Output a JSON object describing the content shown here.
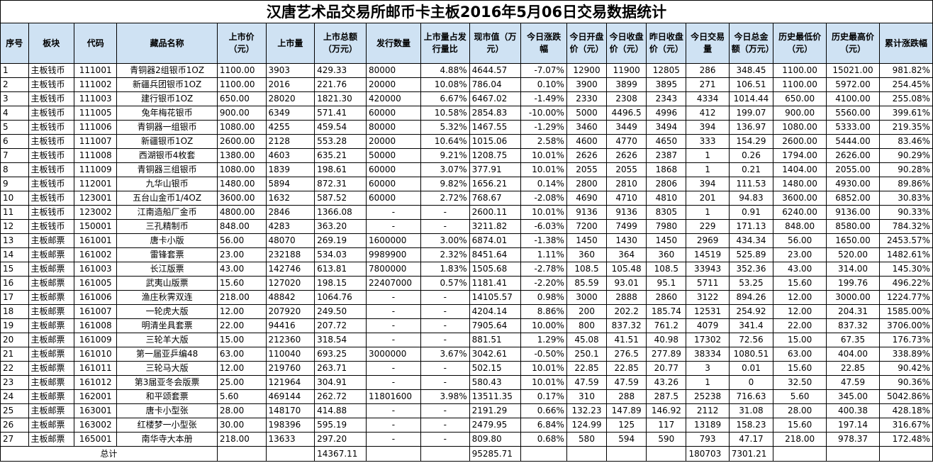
{
  "title": "汉唐艺术品交易所邮币卡主板2016年5月06日交易数据统计",
  "headers": [
    "序号",
    "板块",
    "代码",
    "藏品名称",
    "上市价（元）",
    "上市量",
    "上市总额（万元）",
    "发行数量",
    "上市量占发行量比",
    "现市值（万元）",
    "今日涨跌幅",
    "今日开盘价（元）",
    "今日收盘价（元）",
    "昨日收盘价（元）",
    "今日交易量",
    "今日总金额（万元）",
    "历史最低价（元）",
    "历史最高价（元）",
    "累计涨跌幅"
  ],
  "rows": [
    [
      "1",
      "主板钱币",
      "111001",
      "青铜器2组银币1OZ",
      "1100.00",
      "3903",
      "429.33",
      "80000",
      "4.88%",
      "4644.57",
      "-7.07%",
      "12900",
      "11900",
      "12805",
      "286",
      "348.45",
      "1100.00",
      "15021.00",
      "981.82%"
    ],
    [
      "2",
      "主板钱币",
      "111002",
      "新疆兵团银币1OZ",
      "1100.00",
      "2016",
      "221.76",
      "20000",
      "10.08%",
      "786.04",
      "0.10%",
      "3900",
      "3899",
      "3895",
      "271",
      "106.51",
      "1100.00",
      "5972.00",
      "254.45%"
    ],
    [
      "3",
      "主板钱币",
      "111003",
      "建行银币1OZ",
      "650.00",
      "28020",
      "1821.30",
      "420000",
      "6.67%",
      "6467.02",
      "-1.49%",
      "2330",
      "2308",
      "2343",
      "4334",
      "1014.44",
      "650.00",
      "4100.00",
      "255.08%"
    ],
    [
      "4",
      "主板钱币",
      "111005",
      "兔年梅花银币",
      "900.00",
      "6349",
      "571.41",
      "60000",
      "10.58%",
      "2854.83",
      "-10.00%",
      "5000",
      "4496.5",
      "4996",
      "412",
      "199.07",
      "900.00",
      "5560.00",
      "399.61%"
    ],
    [
      "5",
      "主板钱币",
      "111006",
      "青铜器一组银币",
      "1080.00",
      "4255",
      "459.54",
      "80000",
      "5.32%",
      "1467.55",
      "-1.29%",
      "3460",
      "3449",
      "3494",
      "394",
      "136.97",
      "1080.00",
      "5333.00",
      "219.35%"
    ],
    [
      "6",
      "主板钱币",
      "111007",
      "新疆银币1OZ",
      "2600.00",
      "2128",
      "553.28",
      "20000",
      "10.64%",
      "1015.06",
      "2.58%",
      "4600",
      "4770",
      "4650",
      "333",
      "154.29",
      "2600.00",
      "5444.00",
      "83.46%"
    ],
    [
      "7",
      "主板钱币",
      "111008",
      "西湖银币4枚套",
      "1380.00",
      "4603",
      "635.21",
      "50000",
      "9.21%",
      "1208.75",
      "10.01%",
      "2626",
      "2626",
      "2387",
      "1",
      "0.26",
      "1794.00",
      "2626.00",
      "90.29%"
    ],
    [
      "8",
      "主板钱币",
      "111009",
      "青铜器三组银币",
      "1080.00",
      "1839",
      "198.61",
      "60000",
      "3.07%",
      "377.91",
      "10.01%",
      "2055",
      "2055",
      "1868",
      "1",
      "0.21",
      "1404.00",
      "2055.00",
      "90.28%"
    ],
    [
      "9",
      "主板钱币",
      "112001",
      "九华山银币",
      "1480.00",
      "5894",
      "872.31",
      "60000",
      "9.82%",
      "1656.21",
      "0.14%",
      "2800",
      "2810",
      "2806",
      "394",
      "111.53",
      "1480.00",
      "4930.00",
      "89.86%"
    ],
    [
      "10",
      "主板钱币",
      "123001",
      "五台山金币1/4OZ",
      "3600.00",
      "1632",
      "587.52",
      "60000",
      "2.72%",
      "768.67",
      "-2.08%",
      "4690",
      "4710",
      "4810",
      "201",
      "94.83",
      "3600.00",
      "6852.00",
      "30.83%"
    ],
    [
      "11",
      "主板钱币",
      "123002",
      "江南造船厂金币",
      "4800.00",
      "2846",
      "1366.08",
      "-",
      "-",
      "2600.11",
      "10.01%",
      "9136",
      "9136",
      "8305",
      "1",
      "0.91",
      "6240.00",
      "9136.00",
      "90.33%"
    ],
    [
      "12",
      "主板钱币",
      "150001",
      "三孔精制币",
      "848.00",
      "4283",
      "363.20",
      "-",
      "-",
      "3211.82",
      "-6.03%",
      "7200",
      "7499",
      "7980",
      "229",
      "171.13",
      "848.00",
      "8580.00",
      "784.32%"
    ],
    [
      "13",
      "主板邮票",
      "161001",
      "唐卡小版",
      "56.00",
      "48070",
      "269.19",
      "1600000",
      "3.00%",
      "6874.01",
      "-1.38%",
      "1450",
      "1430",
      "1450",
      "2969",
      "434.34",
      "56.00",
      "1650.00",
      "2453.57%"
    ],
    [
      "14",
      "主板邮票",
      "161002",
      "雷锋套票",
      "23.00",
      "232188",
      "534.03",
      "9989900",
      "2.32%",
      "8451.64",
      "1.11%",
      "360",
      "364",
      "360",
      "14519",
      "525.89",
      "23.00",
      "520.00",
      "1482.61%"
    ],
    [
      "15",
      "主板邮票",
      "161003",
      "长江版票",
      "43.00",
      "142746",
      "613.81",
      "7800000",
      "1.83%",
      "1505.68",
      "-2.78%",
      "108.5",
      "105.48",
      "108.5",
      "33943",
      "352.36",
      "43.00",
      "314.00",
      "145.30%"
    ],
    [
      "16",
      "主板邮票",
      "161005",
      "武夷山版票",
      "15.60",
      "127020",
      "198.15",
      "22407000",
      "0.57%",
      "1181.41",
      "-2.20%",
      "85.59",
      "93.01",
      "95.1",
      "5711",
      "53.25",
      "15.60",
      "199.76",
      "496.22%"
    ],
    [
      "17",
      "主板邮票",
      "161006",
      "渔庄秋霁双连",
      "218.00",
      "48842",
      "1064.76",
      "-",
      "-",
      "14105.57",
      "0.98%",
      "3000",
      "2888",
      "2860",
      "3122",
      "894.26",
      "12.00",
      "3000.00",
      "1224.77%"
    ],
    [
      "18",
      "主板邮票",
      "161007",
      "一轮虎大版",
      "12.00",
      "207920",
      "249.50",
      "-",
      "-",
      "4204.14",
      "8.86%",
      "200",
      "202.2",
      "185.74",
      "12531",
      "254.92",
      "12.00",
      "204.31",
      "1585.00%"
    ],
    [
      "19",
      "主板邮票",
      "161008",
      "明清坐具套票",
      "22.00",
      "94416",
      "207.72",
      "-",
      "-",
      "7905.64",
      "10.00%",
      "800",
      "837.32",
      "761.2",
      "4079",
      "341.4",
      "22.00",
      "837.32",
      "3706.00%"
    ],
    [
      "20",
      "主板邮票",
      "161009",
      "三轮羊大版",
      "15.00",
      "212360",
      "318.54",
      "-",
      "-",
      "881.51",
      "1.29%",
      "45.08",
      "41.51",
      "40.98",
      "17302",
      "72.56",
      "15.00",
      "67.35",
      "176.73%"
    ],
    [
      "21",
      "主板邮票",
      "161010",
      "第一届亚乒编48",
      "63.00",
      "110040",
      "693.25",
      "3000000",
      "3.67%",
      "3042.61",
      "-0.50%",
      "250.1",
      "276.5",
      "277.89",
      "38334",
      "1080.51",
      "63.00",
      "404.00",
      "338.89%"
    ],
    [
      "22",
      "主板邮票",
      "161011",
      "三轮马大版",
      "12.00",
      "219760",
      "263.71",
      "-",
      "-",
      "502.15",
      "10.01%",
      "22.85",
      "22.85",
      "20.77",
      "3",
      "0.01",
      "15.60",
      "22.85",
      "90.42%"
    ],
    [
      "23",
      "主板邮票",
      "161012",
      "第3届亚冬会版票",
      "25.00",
      "121964",
      "304.91",
      "-",
      "-",
      "580.43",
      "10.01%",
      "47.59",
      "47.59",
      "43.26",
      "1",
      "0",
      "32.50",
      "47.59",
      "90.36%"
    ],
    [
      "24",
      "主板邮票",
      "162001",
      "和平颂套票",
      "5.60",
      "469144",
      "262.72",
      "11801600",
      "3.98%",
      "13511.35",
      "0.17%",
      "310",
      "288",
      "287.5",
      "25238",
      "716.63",
      "5.60",
      "345.00",
      "5042.86%"
    ],
    [
      "25",
      "主板邮票",
      "163001",
      "唐卡小型张",
      "28.00",
      "148170",
      "414.88",
      "-",
      "-",
      "2191.29",
      "0.66%",
      "132.23",
      "147.89",
      "146.92",
      "2112",
      "31.08",
      "28.00",
      "400.38",
      "428.18%"
    ],
    [
      "26",
      "主板邮票",
      "163002",
      "红楼梦一小型张",
      "30.00",
      "198396",
      "595.19",
      "-",
      "-",
      "2479.95",
      "6.84%",
      "124.99",
      "125",
      "117",
      "13189",
      "158.23",
      "15.60",
      "197.14",
      "316.67%"
    ],
    [
      "27",
      "主板邮票",
      "165001",
      "南华寺大本册",
      "218.00",
      "13633",
      "297.20",
      "-",
      "-",
      "809.80",
      "0.68%",
      "580",
      "594",
      "590",
      "793",
      "47.17",
      "218.00",
      "978.37",
      "172.48%"
    ]
  ],
  "total": {
    "label": "总计",
    "listing_total": "14367.11",
    "market_value": "95285.71",
    "volume": "180703",
    "amount": "7301.21"
  },
  "colors": {
    "header_bg": "#cfe2f3",
    "border": "#000000"
  }
}
